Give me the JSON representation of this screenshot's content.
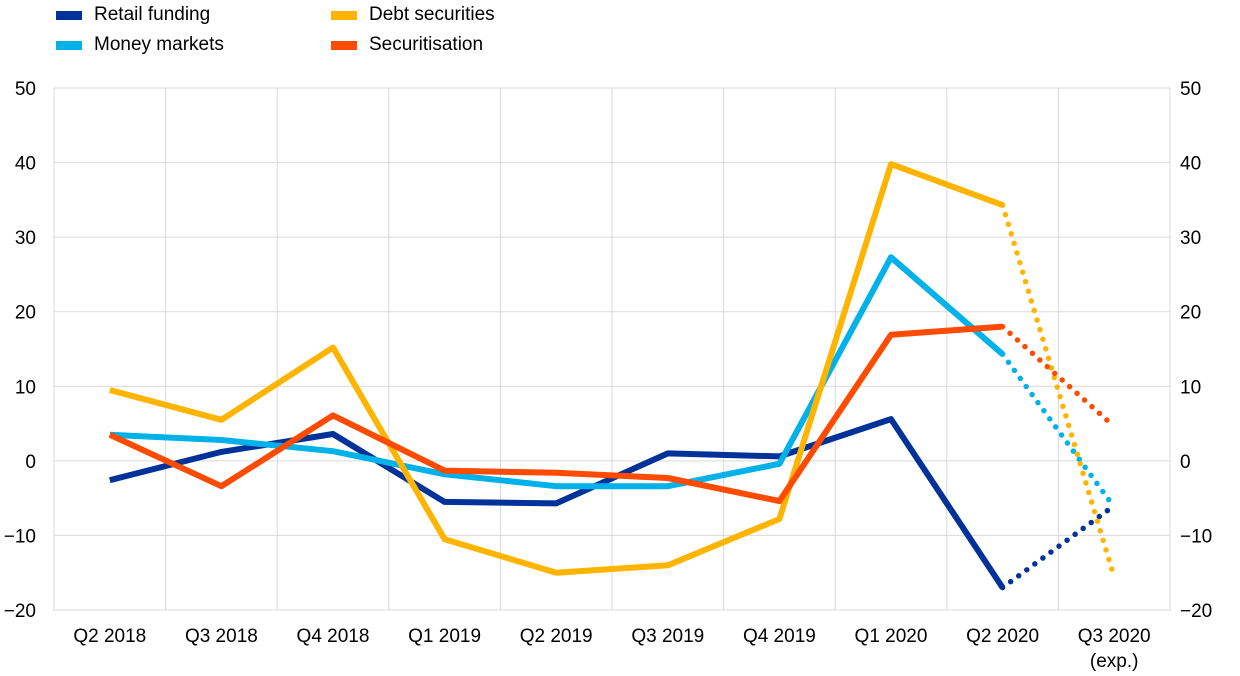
{
  "chart_data": {
    "type": "line",
    "categories": [
      "Q2 2018",
      "Q3 2018",
      "Q4 2018",
      "Q1 2019",
      "Q2 2019",
      "Q3 2019",
      "Q4 2019",
      "Q1 2020",
      "Q2 2020",
      "Q3 2020"
    ],
    "category_sublabels": [
      "",
      "",
      "",
      "",
      "",
      "",
      "",
      "",
      "",
      "(exp.)"
    ],
    "expected_from_index": 8,
    "ylim": [
      -20,
      50
    ],
    "yticks": [
      -20,
      -10,
      0,
      10,
      20,
      30,
      40,
      50
    ],
    "ytick_labels": [
      "−20",
      "−10",
      "0",
      "10",
      "20",
      "30",
      "40",
      "50"
    ],
    "grid": true,
    "legend_position": "top-left",
    "series": [
      {
        "name": "Retail funding",
        "color": "#003299",
        "values": [
          -2.6,
          1.2,
          3.6,
          -5.5,
          -5.7,
          1.0,
          0.6,
          5.6,
          -17.0,
          -6.0
        ]
      },
      {
        "name": "Money markets",
        "color": "#00B1EA",
        "values": [
          3.5,
          2.8,
          1.3,
          -1.8,
          -3.4,
          -3.4,
          -0.4,
          27.3,
          14.3,
          -6.2
        ]
      },
      {
        "name": "Debt securities",
        "color": "#FFB400",
        "values": [
          9.5,
          5.5,
          15.2,
          -10.5,
          -15.0,
          -14.0,
          -7.8,
          39.8,
          34.3,
          -15.6
        ]
      },
      {
        "name": "Securitisation",
        "color": "#FF4B00",
        "values": [
          3.5,
          -3.4,
          6.1,
          -1.3,
          -1.6,
          -2.3,
          -5.4,
          16.9,
          18.0,
          4.6
        ]
      }
    ]
  }
}
